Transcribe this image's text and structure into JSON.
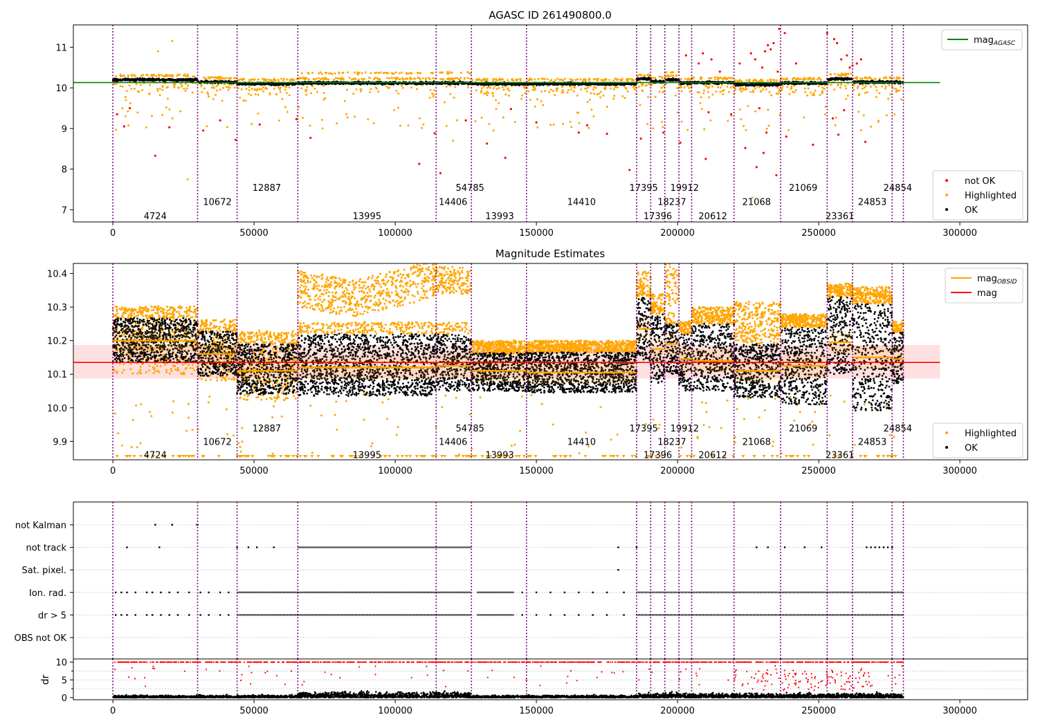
{
  "chart_data": [
    {
      "type": "scatter",
      "title": "AGASC ID 261490800.0",
      "xlim": [
        -14000,
        324000
      ],
      "ylim": [
        6.7,
        11.55
      ],
      "xticks": [
        0,
        50000,
        100000,
        150000,
        200000,
        250000,
        300000
      ],
      "yticks": [
        7,
        8,
        9,
        10,
        11
      ],
      "reference_line": {
        "label": "mag",
        "label_sub": "AGASC",
        "value": 10.13,
        "color": "#008000"
      },
      "legend_top": [
        {
          "label": "mag",
          "sub": "AGASC",
          "color": "#008000"
        }
      ],
      "legend_bottom": [
        {
          "label": "not OK",
          "color": "#ff0000"
        },
        {
          "label": "Highlighted",
          "color": "#ffa500"
        },
        {
          "label": "OK",
          "color": "#000000"
        }
      ],
      "bands": [
        {
          "start": 0,
          "end": 30000,
          "level": 10.2
        },
        {
          "start": 30000,
          "end": 44000,
          "level": 10.14
        },
        {
          "start": 44000,
          "end": 65500,
          "level": 10.1
        },
        {
          "start": 65500,
          "end": 114500,
          "level": 10.12,
          "high": 10.36
        },
        {
          "start": 114500,
          "end": 127000,
          "level": 10.12,
          "high": 10.37
        },
        {
          "start": 127000,
          "end": 146500,
          "level": 10.1
        },
        {
          "start": 146500,
          "end": 185500,
          "level": 10.1
        },
        {
          "start": 185500,
          "end": 190500,
          "level": 10.22
        },
        {
          "start": 190500,
          "end": 195500,
          "level": 10.15
        },
        {
          "start": 195500,
          "end": 200500,
          "level": 10.2,
          "high": 10.38
        },
        {
          "start": 200500,
          "end": 205000,
          "level": 10.12
        },
        {
          "start": 205000,
          "end": 220000,
          "level": 10.13
        },
        {
          "start": 220000,
          "end": 236500,
          "level": 10.08
        },
        {
          "start": 236500,
          "end": 253000,
          "level": 10.12
        },
        {
          "start": 253000,
          "end": 262000,
          "level": 10.22
        },
        {
          "start": 262000,
          "end": 276000,
          "level": 10.14
        },
        {
          "start": 276000,
          "end": 280000,
          "level": 10.14
        }
      ],
      "red_points": [
        [
          1500,
          9.35
        ],
        [
          4000,
          9.05
        ],
        [
          6000,
          9.5
        ],
        [
          15000,
          8.33
        ],
        [
          20000,
          9.03
        ],
        [
          32000,
          8.95
        ],
        [
          38000,
          9.2
        ],
        [
          43500,
          8.72
        ],
        [
          52000,
          9.1
        ],
        [
          65000,
          9.23
        ],
        [
          70000,
          8.77
        ],
        [
          108500,
          8.13
        ],
        [
          114000,
          8.88
        ],
        [
          116000,
          7.9
        ],
        [
          125000,
          9.2
        ],
        [
          132500,
          8.63
        ],
        [
          139000,
          8.28
        ],
        [
          141000,
          9.48
        ],
        [
          150000,
          9.15
        ],
        [
          165000,
          8.9
        ],
        [
          168000,
          9.08
        ],
        [
          175000,
          8.87
        ],
        [
          183000,
          7.98
        ],
        [
          187000,
          8.75
        ],
        [
          195000,
          8.9
        ],
        [
          201000,
          8.65
        ],
        [
          203000,
          10.8
        ],
        [
          207500,
          10.6
        ],
        [
          209000,
          10.85
        ],
        [
          210000,
          8.25
        ],
        [
          211000,
          9.4
        ],
        [
          212000,
          10.7
        ],
        [
          215000,
          10.4
        ],
        [
          219000,
          9.35
        ],
        [
          222000,
          10.6
        ],
        [
          224000,
          8.52
        ],
        [
          226000,
          10.85
        ],
        [
          227500,
          10.7
        ],
        [
          228000,
          8.05
        ],
        [
          229000,
          9.5
        ],
        [
          230000,
          10.5
        ],
        [
          231000,
          10.9
        ],
        [
          232000,
          11.05
        ],
        [
          233000,
          10.95
        ],
        [
          234000,
          11.1
        ],
        [
          235000,
          7.85
        ],
        [
          235500,
          10.4
        ],
        [
          236000,
          11.45
        ],
        [
          238000,
          11.35
        ],
        [
          242000,
          10.6
        ],
        [
          248000,
          8.6
        ],
        [
          253000,
          11.35
        ],
        [
          255000,
          9.25
        ],
        [
          255500,
          11.2
        ],
        [
          256500,
          11.1
        ],
        [
          257000,
          8.85
        ],
        [
          258000,
          10.7
        ],
        [
          259000,
          9.45
        ],
        [
          260000,
          10.8
        ],
        [
          261000,
          10.5
        ],
        [
          262000,
          10.55
        ],
        [
          263500,
          10.6
        ],
        [
          265000,
          10.7
        ],
        [
          266500,
          8.67
        ],
        [
          238500,
          8.8
        ],
        [
          230500,
          8.4
        ],
        [
          231500,
          8.9
        ]
      ],
      "segment_labels": [
        {
          "text": "4724",
          "x": 15000,
          "y": 6.85
        },
        {
          "text": "10672",
          "x": 37000,
          "y": 7.2
        },
        {
          "text": "12887",
          "x": 54500,
          "y": 7.55
        },
        {
          "text": "13995",
          "x": 90000,
          "y": 6.85
        },
        {
          "text": "14406",
          "x": 120500,
          "y": 7.2
        },
        {
          "text": "54785",
          "x": 126500,
          "y": 7.55
        },
        {
          "text": "13993",
          "x": 137000,
          "y": 6.85
        },
        {
          "text": "14410",
          "x": 166000,
          "y": 7.2
        },
        {
          "text": "17395",
          "x": 188000,
          "y": 7.55
        },
        {
          "text": "17396",
          "x": 193000,
          "y": 6.85
        },
        {
          "text": "18237",
          "x": 198000,
          "y": 7.2
        },
        {
          "text": "19912",
          "x": 202500,
          "y": 7.55
        },
        {
          "text": "20612",
          "x": 212500,
          "y": 6.85
        },
        {
          "text": "21068",
          "x": 228000,
          "y": 7.2
        },
        {
          "text": "21069",
          "x": 244500,
          "y": 7.55
        },
        {
          "text": "23361",
          "x": 257500,
          "y": 6.85
        },
        {
          "text": "24853",
          "x": 269000,
          "y": 7.2
        },
        {
          "text": "24854",
          "x": 278000,
          "y": 7.55
        }
      ]
    },
    {
      "type": "scatter",
      "title": "Magnitude Estimates",
      "xlim": [
        -14000,
        324000
      ],
      "ylim": [
        9.845,
        10.43
      ],
      "xticks": [
        0,
        50000,
        100000,
        150000,
        200000,
        250000,
        300000
      ],
      "yticks": [
        9.9,
        10.0,
        10.1,
        10.2,
        10.3,
        10.4
      ],
      "mag_line": {
        "label": "mag",
        "value": 10.135,
        "band_low": 10.087,
        "band_high": 10.187,
        "color": "#ff0000"
      },
      "legend_top": [
        {
          "label": "mag",
          "sub": "OBSID",
          "color": "#ffa500"
        },
        {
          "label": "mag",
          "sub": "",
          "color": "#ff0000"
        }
      ],
      "legend_bottom": [
        {
          "label": "Highlighted",
          "color": "#ffa500"
        },
        {
          "label": "OK",
          "color": "#000000"
        }
      ],
      "obsid_bands": [
        {
          "start": 0,
          "end": 30000,
          "mean": 10.2,
          "lo": 10.135,
          "hi": 10.268,
          "hl_lo": 10.1,
          "hl_hi": 10.3
        },
        {
          "start": 30000,
          "end": 44000,
          "mean": 10.16,
          "lo": 10.095,
          "hi": 10.228,
          "hl_lo": 10.08,
          "hl_hi": 10.25
        },
        {
          "start": 44000,
          "end": 65500,
          "mean": 10.11,
          "lo": 10.04,
          "hi": 10.19,
          "hl_lo": 10.02,
          "hl_hi": 10.23
        },
        {
          "start": 65500,
          "end": 114500,
          "mean": 10.12,
          "lo": 10.035,
          "hi": 10.22,
          "hl_lo": 10.3,
          "hl_hi": 10.41,
          "hl_trend": true
        },
        {
          "start": 114500,
          "end": 127000,
          "mean": 10.125,
          "lo": 10.05,
          "hi": 10.22,
          "hl_lo": 10.34,
          "hl_hi": 10.42
        },
        {
          "start": 127000,
          "end": 146500,
          "mean": 10.11,
          "lo": 10.05,
          "hi": 10.165,
          "hl_lo": 10.16,
          "hl_hi": 10.2
        },
        {
          "start": 146500,
          "end": 185500,
          "mean": 10.105,
          "lo": 10.045,
          "hi": 10.165,
          "hl_lo": 10.165,
          "hl_hi": 10.2
        },
        {
          "start": 185500,
          "end": 190500,
          "mean": 10.235,
          "lo": 10.14,
          "hi": 10.33,
          "hl_lo": 10.33,
          "hl_hi": 10.41
        },
        {
          "start": 190500,
          "end": 195500,
          "mean": 10.175,
          "lo": 10.07,
          "hi": 10.28,
          "hl_lo": 10.28,
          "hl_hi": 10.34
        },
        {
          "start": 195500,
          "end": 200500,
          "mean": 10.19,
          "lo": 10.1,
          "hi": 10.25,
          "hl_lo": 10.3,
          "hl_hi": 10.43
        },
        {
          "start": 200500,
          "end": 205000,
          "mean": 10.145,
          "lo": 10.05,
          "hi": 10.22,
          "hl_lo": 10.22,
          "hl_hi": 10.26
        },
        {
          "start": 205000,
          "end": 220000,
          "mean": 10.14,
          "lo": 10.05,
          "hi": 10.25,
          "hl_lo": 10.25,
          "hl_hi": 10.3
        },
        {
          "start": 220000,
          "end": 236500,
          "mean": 10.11,
          "lo": 10.03,
          "hi": 10.19,
          "hl_lo": 10.22,
          "hl_hi": 10.32
        },
        {
          "start": 236500,
          "end": 253000,
          "mean": 10.125,
          "lo": 10.01,
          "hi": 10.24,
          "hl_lo": 10.24,
          "hl_hi": 10.28
        },
        {
          "start": 253000,
          "end": 262000,
          "mean": 10.195,
          "lo": 10.1,
          "hi": 10.33,
          "hl_lo": 10.33,
          "hl_hi": 10.37
        },
        {
          "start": 262000,
          "end": 276000,
          "mean": 10.15,
          "lo": 9.99,
          "hi": 10.31,
          "hl_lo": 10.31,
          "hl_hi": 10.36
        },
        {
          "start": 276000,
          "end": 280000,
          "mean": 10.145,
          "lo": 10.07,
          "hi": 10.225,
          "hl_lo": 10.225,
          "hl_hi": 10.25
        }
      ],
      "segment_labels": [
        {
          "text": "4724",
          "x": 15000,
          "y": 9.86
        },
        {
          "text": "10672",
          "x": 37000,
          "y": 9.9
        },
        {
          "text": "12887",
          "x": 54500,
          "y": 9.94
        },
        {
          "text": "13995",
          "x": 90000,
          "y": 9.86
        },
        {
          "text": "14406",
          "x": 120500,
          "y": 9.9
        },
        {
          "text": "54785",
          "x": 126500,
          "y": 9.94
        },
        {
          "text": "13993",
          "x": 137000,
          "y": 9.86
        },
        {
          "text": "14410",
          "x": 166000,
          "y": 9.9
        },
        {
          "text": "17395",
          "x": 188000,
          "y": 9.94
        },
        {
          "text": "17396",
          "x": 193000,
          "y": 9.86
        },
        {
          "text": "18237",
          "x": 198000,
          "y": 9.9
        },
        {
          "text": "19912",
          "x": 202500,
          "y": 9.94
        },
        {
          "text": "20612",
          "x": 212500,
          "y": 9.86
        },
        {
          "text": "21068",
          "x": 228000,
          "y": 9.9
        },
        {
          "text": "21069",
          "x": 244500,
          "y": 9.94
        },
        {
          "text": "23361",
          "x": 257500,
          "y": 9.86
        },
        {
          "text": "24853",
          "x": 269000,
          "y": 9.9
        },
        {
          "text": "24854",
          "x": 278000,
          "y": 9.94
        }
      ]
    },
    {
      "type": "scatter",
      "title": "",
      "xlim": [
        -14000,
        324000
      ],
      "flag_rows": [
        "not Kalman",
        "not track",
        "Sat. pixel.",
        "Ion. rad.",
        "dr > 5",
        "OBS not OK"
      ],
      "flag_segments": [
        {
          "row": "not Kalman",
          "ranges": [
            [
              29500,
              30500
            ]
          ],
          "points": [
            15000,
            21000
          ]
        },
        {
          "row": "not track",
          "ranges": [
            [
              65500,
              127000
            ]
          ],
          "points": [
            5000,
            16500,
            44000,
            48000,
            51000,
            57000,
            179000,
            185500,
            228000,
            232000,
            238000,
            245000,
            251000,
            267000,
            268500,
            270000,
            271500,
            273000,
            274500,
            276000
          ]
        },
        {
          "row": "Sat. pixel.",
          "ranges": [],
          "points": [
            179000
          ]
        },
        {
          "row": "Ion. rad.",
          "ranges": [
            [
              44000,
              127000
            ],
            [
              129000,
              142000
            ],
            [
              185500,
              280000
            ]
          ],
          "points": [
            1000,
            3000,
            5000,
            8000,
            12000,
            14000,
            17000,
            20000,
            23000,
            27000,
            31000,
            34000,
            38000,
            41000,
            145000,
            150000,
            155000,
            160000,
            165000,
            170000,
            175000,
            181000
          ]
        },
        {
          "row": "dr > 5",
          "ranges": [
            [
              44000,
              127000
            ],
            [
              129000,
              142000
            ],
            [
              185500,
              280000
            ]
          ],
          "points": [
            1000,
            3000,
            5000,
            8000,
            12000,
            14000,
            17000,
            20000,
            23000,
            27000,
            31000,
            34000,
            38000,
            41000,
            145000,
            150000,
            155000,
            160000,
            165000,
            170000,
            175000,
            181000
          ]
        },
        {
          "row": "OBS not OK",
          "ranges": [],
          "points": []
        }
      ],
      "dr_panel": {
        "ylabel": "dr",
        "ylim": [
          -0.6,
          10.9
        ],
        "yticks": [
          0,
          5,
          10
        ],
        "clip_value": 10
      }
    }
  ],
  "obsid_boundaries": [
    0,
    30000,
    44000,
    65500,
    114500,
    127000,
    146500,
    185500,
    190500,
    195500,
    200500,
    205000,
    220000,
    236500,
    253000,
    262000,
    276000,
    280000
  ],
  "style": {
    "ok_color": "#000000",
    "highlighted_color": "#ffa500",
    "not_ok_color": "#ff0000",
    "boundary_color": "#800080",
    "agasc_color": "#008000",
    "mag_color": "#ff0000"
  }
}
